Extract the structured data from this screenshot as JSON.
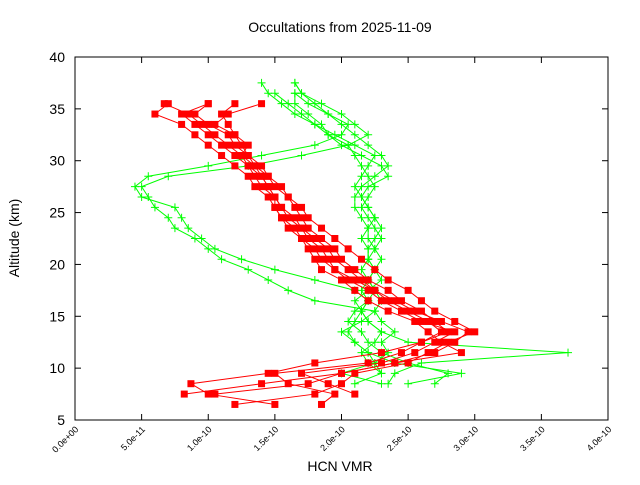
{
  "chart_data": {
    "type": "line",
    "title": "Occultations from 2025-11-09",
    "xlabel": "HCN VMR",
    "ylabel": "Altitude (km)",
    "xlim": [
      0,
      4e-10
    ],
    "ylim": [
      5,
      40
    ],
    "grid": false,
    "x_ticks": [
      {
        "value": 0,
        "label": "0.0e+00"
      },
      {
        "value": 5e-11,
        "label": "5.0e-11"
      },
      {
        "value": 1e-10,
        "label": "1.0e-10"
      },
      {
        "value": 1.5e-10,
        "label": "1.5e-10"
      },
      {
        "value": 2e-10,
        "label": "2.0e-10"
      },
      {
        "value": 2.5e-10,
        "label": "2.5e-10"
      },
      {
        "value": 3e-10,
        "label": "3.0e-10"
      },
      {
        "value": 3.5e-10,
        "label": "3.5e-10"
      },
      {
        "value": 4e-10,
        "label": "4.0e-10"
      }
    ],
    "y_ticks": [
      {
        "value": 5,
        "label": "5"
      },
      {
        "value": 10,
        "label": "10"
      },
      {
        "value": 15,
        "label": "15"
      },
      {
        "value": 20,
        "label": "20"
      },
      {
        "value": 25,
        "label": "25"
      },
      {
        "value": 30,
        "label": "30"
      },
      {
        "value": 35,
        "label": "35"
      },
      {
        "value": 40,
        "label": "40"
      }
    ],
    "colors": {
      "red_series": "#ff0000",
      "green_series": "#00ff00"
    },
    "red_altitudes": [
      6.5,
      7.5,
      8.5,
      9.5,
      10.5,
      11.5,
      12.5,
      13.5,
      14.5,
      15.5,
      16.5,
      17.5,
      18.5,
      19.5,
      20.5,
      21.5,
      22.5,
      23.5,
      24.5,
      25.5,
      26.5,
      27.5,
      28.5,
      29.5,
      30.5,
      31.5,
      32.5,
      33.5,
      34.5,
      35.5
    ],
    "green_altitudes": [
      8.5,
      9.5,
      10.5,
      11.5,
      12.5,
      13.5,
      14.5,
      15.5,
      16.5,
      17.5,
      18.5,
      19.5,
      20.5,
      21.5,
      22.5,
      23.5,
      24.5,
      25.5,
      26.5,
      27.5,
      28.5,
      29.5,
      30.5,
      31.5,
      32.5,
      33.5,
      34.5,
      35.5,
      36.5,
      37.5
    ],
    "red_series": [
      [
        null,
        8.2e-11,
        1.4e-10,
        2e-10,
        2.4e-10,
        2.7e-10,
        2.85e-10,
        2.95e-10,
        2.75e-10,
        2.55e-10,
        2.4e-10,
        2.25e-10,
        2.1e-10,
        1.95e-10,
        1.85e-10,
        1.8e-10,
        1.7e-10,
        1.65e-10,
        1.55e-10,
        1.5e-10,
        1.45e-10,
        1.35e-10,
        1.3e-10,
        1.2e-10,
        1.1e-10,
        1e-10,
        9e-11,
        8e-11,
        6e-11,
        7e-11
      ],
      [
        1.2e-10,
        1.8e-10,
        2e-10,
        2.1e-10,
        2.5e-10,
        2.65e-10,
        2.8e-10,
        3e-10,
        2.85e-10,
        2.7e-10,
        2.6e-10,
        2.5e-10,
        2.35e-10,
        2.25e-10,
        2.15e-10,
        2.05e-10,
        1.95e-10,
        1.85e-10,
        1.75e-10,
        1.7e-10,
        1.6e-10,
        1.55e-10,
        1.45e-10,
        1.4e-10,
        1.3e-10,
        1.2e-10,
        1.15e-10,
        1e-10,
        9e-11,
        1e-10
      ],
      [
        1.5e-10,
        1e-10,
        8.7e-11,
        1.45e-10,
        1.8e-10,
        2.3e-10,
        2.6e-10,
        2.8e-10,
        2.7e-10,
        2.6e-10,
        2.45e-10,
        2.35e-10,
        2.2e-10,
        2.1e-10,
        2e-10,
        1.95e-10,
        1.85e-10,
        1.75e-10,
        1.7e-10,
        1.65e-10,
        1.6e-10,
        1.5e-10,
        1.45e-10,
        1.35e-10,
        1.25e-10,
        1.15e-10,
        1.05e-10,
        9.5e-11,
        8.5e-11,
        6.7e-11
      ],
      [
        1.85e-10,
        1.95e-10,
        1.6e-10,
        1.5e-10,
        2.2e-10,
        2.45e-10,
        2.6e-10,
        2.75e-10,
        2.65e-10,
        2.5e-10,
        2.35e-10,
        2.25e-10,
        2.15e-10,
        2.05e-10,
        1.95e-10,
        1.9e-10,
        1.8e-10,
        1.7e-10,
        1.65e-10,
        1.55e-10,
        1.5e-10,
        1.45e-10,
        1.4e-10,
        1.3e-10,
        1.2e-10,
        1.1e-10,
        1e-10,
        9e-11,
        8e-11,
        1e-10
      ],
      [
        null,
        2.1e-10,
        1.9e-10,
        1.7e-10,
        2.3e-10,
        2.55e-10,
        2.7e-10,
        2.85e-10,
        2.6e-10,
        2.45e-10,
        2.3e-10,
        2.2e-10,
        2.05e-10,
        1.95e-10,
        1.9e-10,
        1.85e-10,
        1.75e-10,
        1.7e-10,
        1.6e-10,
        1.55e-10,
        1.5e-10,
        1.45e-10,
        1.4e-10,
        1.35e-10,
        1.3e-10,
        1.25e-10,
        1.2e-10,
        1.15e-10,
        1.1e-10,
        1.2e-10
      ],
      [
        null,
        1.05e-10,
        1.75e-10,
        2e-10,
        2.4e-10,
        2.9e-10,
        2.75e-10,
        2.65e-10,
        2.55e-10,
        2.35e-10,
        2.2e-10,
        2.1e-10,
        2e-10,
        1.85e-10,
        1.8e-10,
        1.75e-10,
        1.7e-10,
        1.6e-10,
        1.55e-10,
        1.5e-10,
        1.5e-10,
        1.4e-10,
        1.35e-10,
        1.3e-10,
        1.25e-10,
        1.3e-10,
        1.2e-10,
        1.05e-10,
        1.15e-10,
        1.4e-10
      ]
    ],
    "green_series": [
      [
        2.5e-10,
        2.9e-10,
        2.4e-10,
        2.2e-10,
        2.1e-10,
        2.05e-10,
        2.1e-10,
        2.15e-10,
        2.2e-10,
        2.15e-10,
        2.2e-10,
        2.25e-10,
        2.2e-10,
        2.2e-10,
        2.15e-10,
        2.2e-10,
        2.25e-10,
        2.2e-10,
        2.15e-10,
        2.1e-10,
        2.15e-10,
        2.2e-10,
        2.25e-10,
        2.1e-10,
        1.95e-10,
        1.8e-10,
        1.65e-10,
        1.55e-10,
        1.45e-10,
        1.4e-10
      ],
      [
        2.7e-10,
        2.8e-10,
        2.5e-10,
        2.3e-10,
        2.2e-10,
        2.15e-10,
        2.05e-10,
        2.1e-10,
        2.2e-10,
        2.25e-10,
        2.2e-10,
        2.15e-10,
        2.2e-10,
        2.25e-10,
        2.3e-10,
        2.25e-10,
        2.2e-10,
        2.15e-10,
        2.2e-10,
        2.25e-10,
        2.2e-10,
        2.15e-10,
        2.1e-10,
        2.05e-10,
        1.9e-10,
        1.8e-10,
        1.7e-10,
        1.6e-10,
        1.5e-10,
        null
      ],
      [
        2.35e-10,
        2.4e-10,
        2.6e-10,
        3.7e-10,
        2.5e-10,
        2.3e-10,
        2.2e-10,
        2.15e-10,
        2.2e-10,
        2.1e-10,
        1.8e-10,
        1.5e-10,
        1.25e-10,
        1.05e-10,
        9.5e-11,
        8.5e-11,
        8e-11,
        7.5e-11,
        5e-11,
        4.5e-11,
        5.5e-11,
        1e-10,
        1.4e-10,
        1.8e-10,
        2e-10,
        2.05e-10,
        1.9e-10,
        1.75e-10,
        1.65e-10,
        null
      ],
      [
        null,
        2.3e-10,
        2.25e-10,
        2.2e-10,
        2.1e-10,
        2e-10,
        2.15e-10,
        2.25e-10,
        1.8e-10,
        1.6e-10,
        1.45e-10,
        1.3e-10,
        1.1e-10,
        1e-10,
        9e-11,
        7.5e-11,
        7e-11,
        6e-11,
        5.5e-11,
        5e-11,
        7e-11,
        1.3e-10,
        1.7e-10,
        2.05e-10,
        2.2e-10,
        2.1e-10,
        2e-10,
        1.85e-10,
        1.7e-10,
        1.65e-10
      ],
      [
        2.1e-10,
        2.3e-10,
        2.2e-10,
        2.15e-10,
        2.25e-10,
        2.3e-10,
        2.2e-10,
        2.15e-10,
        2.1e-10,
        2.2e-10,
        2.3e-10,
        2.25e-10,
        2.2e-10,
        2.2e-10,
        2.25e-10,
        2.3e-10,
        2.25e-10,
        2.2e-10,
        2.15e-10,
        2.2e-10,
        2.35e-10,
        2.3e-10,
        2.15e-10,
        2e-10,
        1.9e-10,
        1.85e-10,
        1.75e-10,
        1.65e-10,
        1.65e-10,
        null
      ],
      [
        2.3e-10,
        2e-10,
        2.25e-10,
        2.35e-10,
        2.3e-10,
        2.4e-10,
        2.3e-10,
        2.25e-10,
        2.3e-10,
        2.25e-10,
        2.2e-10,
        2.25e-10,
        2.3e-10,
        2.25e-10,
        2.2e-10,
        2.2e-10,
        2.15e-10,
        2.1e-10,
        2.1e-10,
        2.15e-10,
        2.25e-10,
        2.35e-10,
        2.3e-10,
        2.2e-10,
        2.1e-10,
        2e-10,
        1.9e-10,
        1.8e-10,
        1.7e-10,
        1.65e-10
      ]
    ]
  }
}
